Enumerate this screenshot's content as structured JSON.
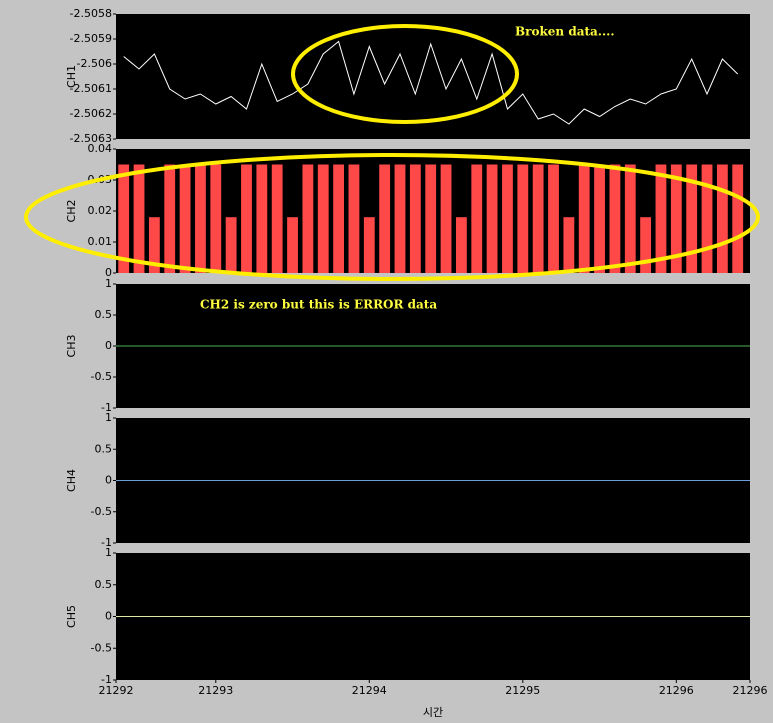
{
  "chart_data": [
    {
      "type": "line",
      "y_label": "CH1",
      "annotation": "Broken data....",
      "xlim": [
        21292.35,
        21296.48
      ],
      "ylim": [
        -2.5063,
        -2.5058
      ],
      "yticks": [
        -2.5058,
        -2.5059,
        -2.506,
        -2.5061,
        -2.5062,
        -2.5063
      ],
      "series": [
        {
          "name": "CH1",
          "color": "#ffffff",
          "x": [
            21292.4,
            21292.5,
            21292.6,
            21292.7,
            21292.8,
            21292.9,
            21293.0,
            21293.1,
            21293.2,
            21293.3,
            21293.4,
            21293.5,
            21293.6,
            21293.7,
            21293.8,
            21293.9,
            21294.0,
            21294.1,
            21294.2,
            21294.3,
            21294.4,
            21294.5,
            21294.6,
            21294.7,
            21294.8,
            21294.9,
            21295.0,
            21295.1,
            21295.2,
            21295.3,
            21295.4,
            21295.5,
            21295.6,
            21295.7,
            21295.8,
            21295.9,
            21296.0,
            21296.1,
            21296.2,
            21296.3,
            21296.4
          ],
          "values": [
            -2.50597,
            -2.50602,
            -2.50596,
            -2.5061,
            -2.50614,
            -2.50612,
            -2.50616,
            -2.50613,
            -2.50618,
            -2.506,
            -2.50615,
            -2.50612,
            -2.50608,
            -2.50596,
            -2.50591,
            -2.50612,
            -2.50593,
            -2.50608,
            -2.50596,
            -2.50612,
            -2.50592,
            -2.5061,
            -2.50598,
            -2.50614,
            -2.50596,
            -2.50618,
            -2.50612,
            -2.50622,
            -2.5062,
            -2.50624,
            -2.50618,
            -2.50621,
            -2.50617,
            -2.50614,
            -2.50616,
            -2.50612,
            -2.5061,
            -2.50598,
            -2.50612,
            -2.50598,
            -2.50604
          ]
        }
      ]
    },
    {
      "type": "bar",
      "y_label": "CH2",
      "xlim": [
        21292.35,
        21296.48
      ],
      "ylim": [
        0,
        0.04
      ],
      "yticks": [
        0,
        0.01,
        0.02,
        0.03,
        0.04
      ],
      "series": [
        {
          "name": "CH2",
          "color": "#ff4848",
          "x": [
            21292.4,
            21292.5,
            21292.6,
            21292.7,
            21292.8,
            21292.9,
            21293.0,
            21293.1,
            21293.2,
            21293.3,
            21293.4,
            21293.5,
            21293.6,
            21293.7,
            21293.8,
            21293.9,
            21294.0,
            21294.1,
            21294.2,
            21294.3,
            21294.4,
            21294.5,
            21294.6,
            21294.7,
            21294.8,
            21294.9,
            21295.0,
            21295.1,
            21295.2,
            21295.3,
            21295.4,
            21295.5,
            21295.6,
            21295.7,
            21295.8,
            21295.9,
            21296.0,
            21296.1,
            21296.2,
            21296.3,
            21296.4
          ],
          "values": [
            0.035,
            0.035,
            0.018,
            0.035,
            0.035,
            0.035,
            0.035,
            0.018,
            0.035,
            0.035,
            0.035,
            0.018,
            0.035,
            0.035,
            0.035,
            0.035,
            0.018,
            0.035,
            0.035,
            0.035,
            0.035,
            0.035,
            0.018,
            0.035,
            0.035,
            0.035,
            0.035,
            0.035,
            0.035,
            0.018,
            0.035,
            0.035,
            0.035,
            0.035,
            0.018,
            0.035,
            0.035,
            0.035,
            0.035,
            0.035,
            0.035
          ]
        }
      ]
    },
    {
      "type": "line",
      "y_label": "CH3",
      "annotation": "CH2 is zero but this is ERROR data",
      "xlim": [
        21292.35,
        21296.48
      ],
      "ylim": [
        -1,
        1
      ],
      "yticks": [
        1,
        0.5,
        0,
        -0.5,
        -1
      ],
      "series": [
        {
          "name": "CH3",
          "color": "#4caf50",
          "x": [
            21292.35,
            21296.48
          ],
          "values": [
            0,
            0
          ]
        }
      ]
    },
    {
      "type": "line",
      "y_label": "CH4",
      "xlim": [
        21292.35,
        21296.48
      ],
      "ylim": [
        -1,
        1
      ],
      "yticks": [
        1,
        0.5,
        0,
        -0.5,
        -1
      ],
      "series": [
        {
          "name": "CH4",
          "color": "#6a9fd8",
          "x": [
            21292.35,
            21296.48
          ],
          "values": [
            0,
            0
          ]
        }
      ]
    },
    {
      "type": "line",
      "y_label": "CH5",
      "x_label": "시간",
      "xlim": [
        21292.35,
        21296.48
      ],
      "ylim": [
        -1,
        1
      ],
      "yticks": [
        1,
        0.5,
        0,
        -0.5,
        -1
      ],
      "xticks": [
        {
          "value": 21292.35,
          "label": "21292"
        },
        21293,
        21294,
        21295,
        21296,
        {
          "value": 21296.48,
          "label": "21296"
        }
      ],
      "series": [
        {
          "name": "CH5",
          "color": "#e0e8a8",
          "x": [
            21292.35,
            21296.48
          ],
          "values": [
            0,
            0
          ]
        }
      ]
    }
  ]
}
